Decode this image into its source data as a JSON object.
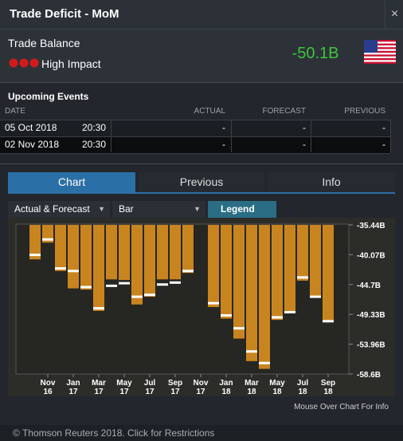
{
  "header": {
    "title": "Trade Deficit - MoM",
    "close": "×"
  },
  "indicator": {
    "name": "Trade Balance",
    "impact": "High Impact",
    "value": "-50.1B"
  },
  "events": {
    "title": "Upcoming Events",
    "columns": [
      "DATE",
      "ACTUAL",
      "FORECAST",
      "PREVIOUS"
    ],
    "rows": [
      [
        "05 Oct 2018",
        "20:30",
        "-",
        "-",
        "-"
      ],
      [
        "02 Nov 2018",
        "20:30",
        "-",
        "-",
        "-"
      ]
    ]
  },
  "tabs": [
    "Chart",
    "Previous",
    "Info"
  ],
  "controls": {
    "series_mode": "Actual & Forecast",
    "chart_type": "Bar",
    "legend": "Legend"
  },
  "chart_data": {
    "type": "bar",
    "categories": [
      null,
      "Nov 16",
      null,
      "Jan 17",
      null,
      "Mar 17",
      null,
      "May 17",
      null,
      "Jul 17",
      null,
      "Sep 17",
      null,
      "Nov 17",
      null,
      "Jan 18",
      null,
      "Mar 18",
      null,
      "May 18",
      null,
      "Jul 18",
      null,
      "Sep 18"
    ],
    "series": [
      {
        "mark": "bar",
        "color": "#c8851f",
        "values": [
          -40.8,
          -38.2,
          -42.6,
          -45.3,
          -45.5,
          -48.8,
          -43.9,
          -44.0,
          -47.8,
          -46.6,
          -43.9,
          -43.9,
          -42.9,
          null,
          -48.2,
          -50.0,
          -53.1,
          -56.6,
          -57.8,
          -50.2,
          -49.1,
          -44.1,
          -46.6,
          -50.4
        ]
      },
      {
        "mark": "tick",
        "color": "#ffffff",
        "values": [
          -40.1,
          -37.7,
          -42.2,
          -42.6,
          -45.1,
          -48.4,
          -44.9,
          -44.5,
          -46.6,
          -46.3,
          -44.7,
          -44.4,
          -42.6,
          null,
          -47.6,
          -49.5,
          -51.5,
          -55.1,
          -56.9,
          -49.8,
          -49.0,
          -43.6,
          -46.6,
          -50.4
        ]
      }
    ],
    "ylim": [
      -58.6,
      -35.44
    ],
    "yticks": [
      {
        "value": -35.44,
        "label": "-35.44B"
      },
      {
        "value": -40.07,
        "label": "-40.07B"
      },
      {
        "value": -44.7,
        "label": "-44.7B"
      },
      {
        "value": -49.33,
        "label": "-49.33B"
      },
      {
        "value": -53.96,
        "label": "-53.96B"
      },
      {
        "value": -58.6,
        "label": "-58.6B"
      }
    ],
    "grid": false
  },
  "hint": "Mouse Over Chart For Info",
  "footer": "© Thomson Reuters 2018. Click for Restrictions"
}
